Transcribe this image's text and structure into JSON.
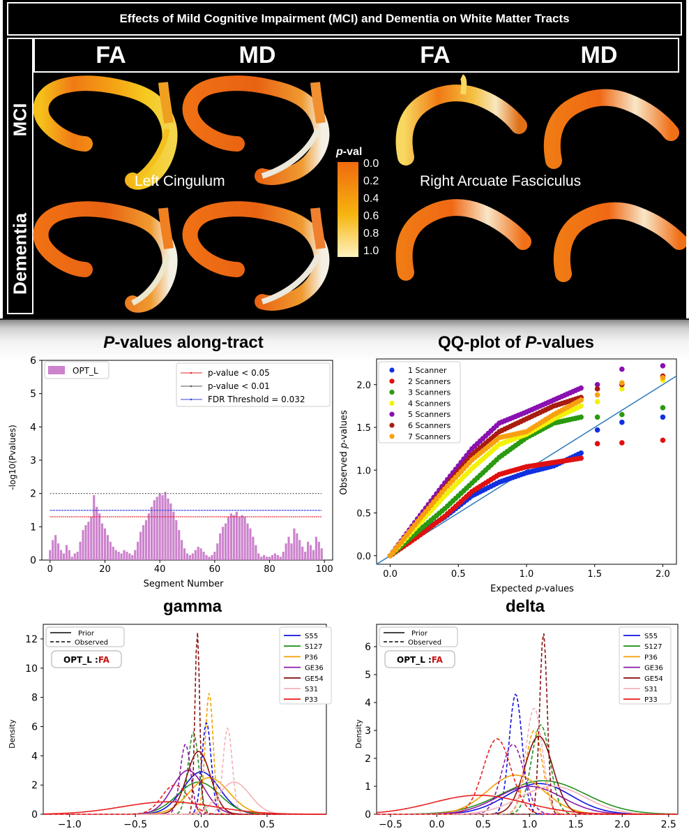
{
  "figure_top": {
    "title": "Effects of Mild Cognitive Impairment (MCI) and Dementia on White Matter Tracts",
    "col_headers": [
      "FA",
      "MD",
      "FA",
      "MD"
    ],
    "row_labels": [
      "MCI",
      "Dementia"
    ],
    "tract_labels": [
      "Left Cingulum",
      "Right Arcuate Fasciculus"
    ],
    "colorbar": {
      "label_prefix": "p",
      "label_suffix": "-val",
      "ticks": [
        "0.0",
        "0.2",
        "0.4",
        "0.6",
        "0.8",
        "1.0"
      ],
      "colors": [
        "#f06a10",
        "#f6b40e",
        "#fff3c0"
      ]
    }
  },
  "colors": {
    "bar": "#cc82cc",
    "line_005": "#e8202a",
    "line_001": "#555555",
    "line_fdr": "#3845d8",
    "qq_ref": "#2a78b8"
  },
  "chart_data": [
    {
      "type": "bar",
      "title_italic": "P",
      "title_rest": "-values along-tract",
      "xlabel": "Segment Number",
      "ylabel": "-log10(Pvalues)",
      "xlim": [
        -3,
        103
      ],
      "ylim": [
        0,
        6
      ],
      "xticks": [
        0,
        20,
        40,
        60,
        80,
        100
      ],
      "yticks": [
        0,
        1,
        2,
        3,
        4,
        5,
        6
      ],
      "legend_bar": "OPT_L",
      "hlines": [
        {
          "label": "p-value < 0.05",
          "y": 1.301
        },
        {
          "label": "p-value < 0.01",
          "y": 2.0
        },
        {
          "label": "FDR Threshold = 0.032",
          "y": 1.495
        }
      ],
      "x": [
        0,
        1,
        2,
        3,
        4,
        5,
        6,
        7,
        8,
        9,
        10,
        11,
        12,
        13,
        14,
        15,
        16,
        17,
        18,
        19,
        20,
        21,
        22,
        23,
        24,
        25,
        26,
        27,
        28,
        29,
        30,
        31,
        32,
        33,
        34,
        35,
        36,
        37,
        38,
        39,
        40,
        41,
        42,
        43,
        44,
        45,
        46,
        47,
        48,
        49,
        50,
        51,
        52,
        53,
        54,
        55,
        56,
        57,
        58,
        59,
        60,
        61,
        62,
        63,
        64,
        65,
        66,
        67,
        68,
        69,
        70,
        71,
        72,
        73,
        74,
        75,
        76,
        77,
        78,
        79,
        80,
        81,
        82,
        83,
        84,
        85,
        86,
        87,
        88,
        89,
        90,
        91,
        92,
        93,
        94,
        95,
        96,
        97,
        98,
        99
      ],
      "values": [
        0.3,
        0.6,
        0.75,
        0.5,
        0.3,
        0.2,
        0.45,
        0.3,
        0.1,
        0.2,
        0.25,
        0.55,
        0.9,
        1.05,
        1.15,
        1.3,
        1.95,
        1.6,
        1.4,
        1.1,
        0.95,
        0.75,
        0.55,
        0.4,
        0.3,
        0.25,
        0.2,
        0.3,
        0.25,
        0.2,
        0.15,
        0.3,
        0.55,
        0.85,
        1.05,
        1.2,
        1.4,
        1.6,
        1.8,
        1.9,
        2.0,
        1.95,
        2.05,
        1.85,
        1.7,
        1.45,
        1.2,
        0.9,
        0.6,
        0.35,
        0.2,
        0.15,
        0.2,
        0.3,
        0.4,
        0.35,
        0.25,
        0.15,
        0.1,
        0.15,
        0.25,
        0.5,
        0.8,
        1.0,
        1.1,
        1.3,
        1.4,
        1.35,
        1.45,
        1.3,
        1.35,
        1.3,
        1.1,
        0.95,
        0.7,
        0.45,
        0.2,
        0.1,
        0.15,
        0.1,
        0.1,
        0.15,
        0.2,
        0.15,
        0.1,
        0.25,
        0.5,
        0.7,
        0.5,
        0.95,
        0.8,
        0.6,
        0.4,
        0.25,
        0.55,
        0.45,
        0.3,
        0.7,
        0.55,
        0.35
      ]
    },
    {
      "type": "scatter",
      "title_italic": "P",
      "title_prefix": "QQ-plot of ",
      "title_rest": "-values",
      "xlabel_prefix": "Expected ",
      "xlabel_italic": "p",
      "xlabel_rest": "-values",
      "ylabel_prefix": "Observed ",
      "ylabel_italic": "p",
      "ylabel_rest": "-values",
      "xlim": [
        -0.1,
        2.1
      ],
      "ylim": [
        -0.1,
        2.3
      ],
      "xticks": [
        0.0,
        0.5,
        1.0,
        1.5,
        2.0
      ],
      "yticks": [
        0.0,
        0.5,
        1.0,
        1.5,
        2.0
      ],
      "reference_line": [
        [
          -0.1,
          -0.1
        ],
        [
          2.1,
          2.1
        ]
      ],
      "series": [
        {
          "name": "1 Scanner",
          "color": "#1030e0",
          "curve": [
            [
              0.0,
              0.0
            ],
            [
              0.2,
              0.25
            ],
            [
              0.4,
              0.45
            ],
            [
              0.6,
              0.7
            ],
            [
              0.8,
              0.86
            ],
            [
              1.0,
              0.97
            ],
            [
              1.2,
              1.05
            ],
            [
              1.4,
              1.2
            ]
          ],
          "outliers": [
            [
              1.52,
              1.47
            ],
            [
              1.7,
              1.56
            ],
            [
              2.0,
              1.62
            ]
          ]
        },
        {
          "name": "2 Scanners",
          "color": "#e01010",
          "curve": [
            [
              0.0,
              0.0
            ],
            [
              0.2,
              0.22
            ],
            [
              0.4,
              0.46
            ],
            [
              0.6,
              0.75
            ],
            [
              0.8,
              0.95
            ],
            [
              1.0,
              1.04
            ],
            [
              1.2,
              1.09
            ],
            [
              1.4,
              1.14
            ]
          ],
          "outliers": [
            [
              1.52,
              1.31
            ],
            [
              1.7,
              1.32
            ],
            [
              2.0,
              1.35
            ]
          ]
        },
        {
          "name": "3 Scanners",
          "color": "#2a9a10",
          "curve": [
            [
              0.0,
              0.0
            ],
            [
              0.2,
              0.28
            ],
            [
              0.4,
              0.55
            ],
            [
              0.6,
              0.85
            ],
            [
              0.8,
              1.15
            ],
            [
              1.0,
              1.38
            ],
            [
              1.2,
              1.55
            ],
            [
              1.4,
              1.62
            ]
          ],
          "outliers": [
            [
              1.52,
              1.62
            ],
            [
              1.7,
              1.65
            ],
            [
              2.0,
              1.73
            ]
          ]
        },
        {
          "name": "4 Scanners",
          "color": "#f2f20a",
          "curve": [
            [
              0.0,
              0.0
            ],
            [
              0.2,
              0.35
            ],
            [
              0.4,
              0.7
            ],
            [
              0.6,
              1.02
            ],
            [
              0.8,
              1.3
            ],
            [
              1.0,
              1.42
            ],
            [
              1.2,
              1.6
            ],
            [
              1.4,
              1.75
            ]
          ],
          "outliers": [
            [
              1.52,
              1.8
            ],
            [
              1.7,
              1.95
            ],
            [
              2.0,
              2.05
            ]
          ]
        },
        {
          "name": "5 Scanners",
          "color": "#8a10b0",
          "curve": [
            [
              0.0,
              0.0
            ],
            [
              0.2,
              0.43
            ],
            [
              0.4,
              0.85
            ],
            [
              0.6,
              1.25
            ],
            [
              0.8,
              1.55
            ],
            [
              1.0,
              1.68
            ],
            [
              1.2,
              1.82
            ],
            [
              1.4,
              1.96
            ]
          ],
          "outliers": [
            [
              1.52,
              2.0
            ],
            [
              1.7,
              2.18
            ],
            [
              2.0,
              2.22
            ]
          ]
        },
        {
          "name": "6 Scanners",
          "color": "#a81c10",
          "curve": [
            [
              0.0,
              0.0
            ],
            [
              0.2,
              0.4
            ],
            [
              0.4,
              0.8
            ],
            [
              0.6,
              1.18
            ],
            [
              0.8,
              1.45
            ],
            [
              1.0,
              1.6
            ],
            [
              1.2,
              1.75
            ],
            [
              1.4,
              1.85
            ]
          ],
          "outliers": [
            [
              1.52,
              1.95
            ],
            [
              1.7,
              2.0
            ],
            [
              2.0,
              2.1
            ]
          ]
        },
        {
          "name": "7 Scanners",
          "color": "#f8a010",
          "curve": [
            [
              0.0,
              0.0
            ],
            [
              0.2,
              0.4
            ],
            [
              0.4,
              0.78
            ],
            [
              0.6,
              1.12
            ],
            [
              0.8,
              1.38
            ],
            [
              1.0,
              1.45
            ],
            [
              1.2,
              1.65
            ],
            [
              1.4,
              1.82
            ]
          ],
          "outliers": [
            [
              1.52,
              1.88
            ],
            [
              1.7,
              2.02
            ],
            [
              2.0,
              2.08
            ]
          ]
        }
      ]
    },
    {
      "type": "line",
      "title": "gamma",
      "ylabel": "Density",
      "xlim": [
        -1.2,
        0.95
      ],
      "ylim": [
        0,
        13
      ],
      "xticks": [
        -1.0,
        -0.5,
        0.0,
        0.5
      ],
      "xtick_labels": [
        "−1.0",
        "−0.5",
        "0.0",
        "0.5"
      ],
      "yticks": [
        0,
        2,
        4,
        6,
        8,
        10,
        12
      ],
      "legend_style": [
        "Prior",
        "Observed"
      ],
      "badge_prefix": "OPT_L :",
      "badge_suffix": "FA",
      "series": [
        {
          "name": "S55",
          "color": "#1010e0",
          "prior": {
            "mu": 0.0,
            "sigma": 0.14,
            "peak": 2.9
          },
          "observed": {
            "mu": 0.04,
            "sigma": 0.035,
            "peak": 6.3
          }
        },
        {
          "name": "S127",
          "color": "#20901a",
          "prior": {
            "mu": -0.02,
            "sigma": 0.16,
            "peak": 2.2
          },
          "observed": {
            "mu": -0.06,
            "sigma": 0.04,
            "peak": 5.6
          }
        },
        {
          "name": "P36",
          "color": "#f0a000",
          "prior": {
            "mu": 0.06,
            "sigma": 0.15,
            "peak": 2.5
          },
          "observed": {
            "mu": 0.06,
            "sigma": 0.03,
            "peak": 8.3
          }
        },
        {
          "name": "GE36",
          "color": "#8a1aa8",
          "prior": {
            "mu": -0.1,
            "sigma": 0.12,
            "peak": 3.0
          },
          "observed": {
            "mu": -0.12,
            "sigma": 0.04,
            "peak": 4.8
          }
        },
        {
          "name": "GE54",
          "color": "#8a1010",
          "prior": {
            "mu": -0.02,
            "sigma": 0.09,
            "peak": 4.3
          },
          "observed": {
            "mu": -0.03,
            "sigma": 0.018,
            "peak": 12.5
          }
        },
        {
          "name": "S31",
          "color": "#f4b0b8",
          "prior": {
            "mu": 0.25,
            "sigma": 0.12,
            "peak": 2.2
          },
          "observed": {
            "mu": 0.2,
            "sigma": 0.035,
            "peak": 5.9
          }
        },
        {
          "name": "P33",
          "color": "#e82020",
          "prior": {
            "mu": -0.25,
            "sigma": 0.35,
            "peak": 0.85
          },
          "observed": {
            "mu": -0.2,
            "sigma": 0.1,
            "peak": 2.0
          }
        }
      ]
    },
    {
      "type": "line",
      "title": "delta",
      "ylabel": "Density",
      "xlim": [
        -0.65,
        2.6
      ],
      "ylim": [
        0,
        6.8
      ],
      "xticks": [
        -0.5,
        0.0,
        0.5,
        1.0,
        1.5,
        2.0,
        2.5
      ],
      "xtick_labels": [
        "−0.5",
        "0.0",
        "0.5",
        "1.0",
        "1.5",
        "2.0",
        "2.5"
      ],
      "yticks": [
        0,
        1,
        2,
        3,
        4,
        5,
        6
      ],
      "legend_style": [
        "Prior",
        "Observed"
      ],
      "badge_prefix": "OPT_L :",
      "badge_suffix": "FA",
      "series": [
        {
          "name": "S55",
          "color": "#1010e0",
          "prior": {
            "mu": 1.1,
            "sigma": 0.35,
            "peak": 1.1
          },
          "observed": {
            "mu": 0.85,
            "sigma": 0.07,
            "peak": 4.3
          }
        },
        {
          "name": "S127",
          "color": "#20901a",
          "prior": {
            "mu": 1.15,
            "sigma": 0.45,
            "peak": 1.2
          },
          "observed": {
            "mu": 1.12,
            "sigma": 0.1,
            "peak": 3.2
          }
        },
        {
          "name": "P36",
          "color": "#f0a000",
          "prior": {
            "mu": 0.85,
            "sigma": 0.3,
            "peak": 1.4
          },
          "observed": {
            "mu": 1.05,
            "sigma": 0.09,
            "peak": 3.0
          }
        },
        {
          "name": "GE36",
          "color": "#8a1aa8",
          "prior": {
            "mu": 1.0,
            "sigma": 0.35,
            "peak": 1.0
          },
          "observed": {
            "mu": 0.82,
            "sigma": 0.12,
            "peak": 2.5
          }
        },
        {
          "name": "GE54",
          "color": "#8a1010",
          "prior": {
            "mu": 1.1,
            "sigma": 0.15,
            "peak": 2.8
          },
          "observed": {
            "mu": 1.15,
            "sigma": 0.04,
            "peak": 6.5
          }
        },
        {
          "name": "S31",
          "color": "#f4b0b8",
          "prior": {
            "mu": 1.25,
            "sigma": 0.35,
            "peak": 1.0
          },
          "observed": {
            "mu": 1.05,
            "sigma": 0.09,
            "peak": 3.8
          }
        },
        {
          "name": "P33",
          "color": "#e82020",
          "prior": {
            "mu": 0.45,
            "sigma": 0.5,
            "peak": 0.68
          },
          "observed": {
            "mu": 0.65,
            "sigma": 0.15,
            "peak": 2.7
          }
        }
      ]
    }
  ]
}
